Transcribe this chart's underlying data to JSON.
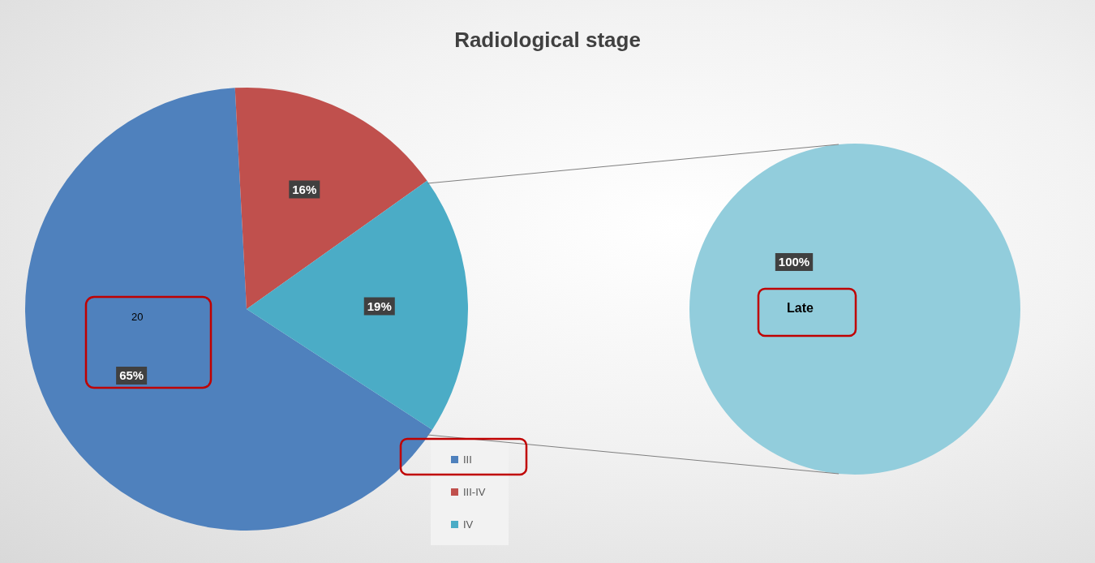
{
  "chart_data": [
    {
      "type": "pie",
      "title": "Radiological stage",
      "categories": [
        "III",
        "III-IV",
        "IV"
      ],
      "values": [
        65,
        16,
        19
      ],
      "value_labels": [
        "65%",
        "16%",
        "19%"
      ],
      "colors": [
        "#4f81bd",
        "#c0504d",
        "#4bacc6"
      ],
      "legend": "bottom right",
      "annotations": [
        "20"
      ]
    },
    {
      "type": "pie",
      "categories": [
        "Late"
      ],
      "values": [
        100
      ],
      "value_labels": [
        "100%"
      ],
      "colors": [
        "#92cddc"
      ]
    }
  ]
}
